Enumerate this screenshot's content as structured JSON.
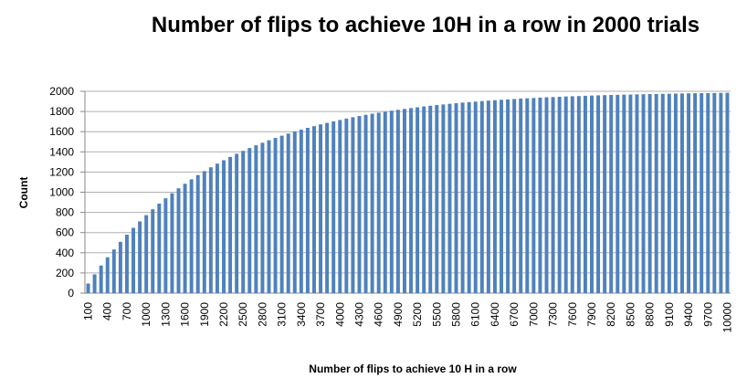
{
  "chart_data": {
    "type": "bar",
    "title": "Number of flips to achieve 10H in a row in 2000 trials",
    "x_label": "Number of flips to achieve 10 H in a row",
    "y_label": "Count",
    "categories": [
      "100",
      null,
      null,
      "400",
      null,
      null,
      "700",
      null,
      null,
      "1000",
      null,
      null,
      "1300",
      null,
      null,
      "1600",
      null,
      null,
      "1900",
      null,
      null,
      "2200",
      null,
      null,
      "2500",
      null,
      null,
      "2800",
      null,
      null,
      "3100",
      null,
      null,
      "3400",
      null,
      null,
      "3700",
      null,
      null,
      "4000",
      null,
      null,
      "4300",
      null,
      null,
      "4600",
      null,
      null,
      "4900",
      null,
      null,
      "5200",
      null,
      null,
      "5500",
      null,
      null,
      "5800",
      null,
      null,
      "6100",
      null,
      null,
      "6400",
      null,
      null,
      "6700",
      null,
      null,
      "7000",
      null,
      null,
      "7300",
      null,
      null,
      "7600",
      null,
      null,
      "7900",
      null,
      null,
      "8200",
      null,
      null,
      "8500",
      null,
      null,
      "8800",
      null,
      null,
      "9100",
      null,
      null,
      "9400",
      null,
      null,
      "9700",
      null,
      null,
      "10000"
    ],
    "values": [
      95,
      186,
      273,
      355,
      433,
      508,
      579,
      647,
      711,
      773,
      831,
      887,
      940,
      990,
      1039,
      1084,
      1128,
      1170,
      1209,
      1247,
      1283,
      1317,
      1350,
      1381,
      1410,
      1438,
      1465,
      1490,
      1515,
      1538,
      1560,
      1581,
      1601,
      1620,
      1638,
      1655,
      1672,
      1687,
      1702,
      1716,
      1730,
      1743,
      1755,
      1767,
      1778,
      1788,
      1798,
      1808,
      1817,
      1826,
      1834,
      1842,
      1850,
      1857,
      1864,
      1870,
      1876,
      1882,
      1888,
      1893,
      1898,
      1903,
      1908,
      1912,
      1916,
      1920,
      1924,
      1928,
      1931,
      1934,
      1938,
      1941,
      1943,
      1946,
      1949,
      1951,
      1953,
      1956,
      1958,
      1960,
      1962,
      1964,
      1965,
      1967,
      1968,
      1970,
      1971,
      1973,
      1974,
      1975,
      1976,
      1978,
      1979,
      1980,
      1981,
      1982,
      1982,
      1983,
      1984,
      1985
    ],
    "color": "#4f81bd",
    "ylim": [
      0,
      2000
    ],
    "yticks": [
      0,
      200,
      400,
      600,
      800,
      1000,
      1200,
      1400,
      1600,
      1800,
      2000
    ],
    "grid": true
  }
}
